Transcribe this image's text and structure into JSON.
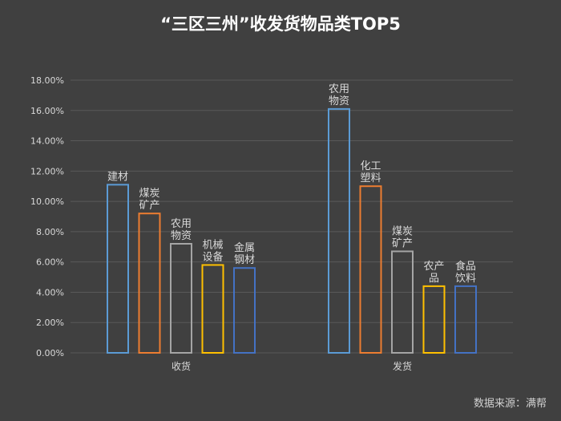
{
  "chart_data": {
    "type": "bar",
    "title": "“三区三州”收发货物品类TOP5",
    "xlabel": "",
    "ylabel": "",
    "ylim": [
      0,
      18
    ],
    "yticks": [
      "0.00%",
      "2.00%",
      "4.00%",
      "6.00%",
      "8.00%",
      "10.00%",
      "12.00%",
      "14.00%",
      "16.00%",
      "18.00%"
    ],
    "grid": true,
    "legend": "none",
    "groups": [
      {
        "label": "收货",
        "items": [
          {
            "name": "建材",
            "value": 11.1,
            "color": "#5b9bd5"
          },
          {
            "name": "煤炭矿产",
            "value": 9.2,
            "color": "#ed7d31"
          },
          {
            "name": "农用物资",
            "value": 7.2,
            "color": "#a5a5a5"
          },
          {
            "name": "机械设备",
            "value": 5.8,
            "color": "#ffc000"
          },
          {
            "name": "金属钢材",
            "value": 5.6,
            "color": "#4472c4"
          }
        ]
      },
      {
        "label": "发货",
        "items": [
          {
            "name": "农用物资",
            "value": 16.1,
            "color": "#5b9bd5"
          },
          {
            "name": "化工塑料",
            "value": 11.0,
            "color": "#ed7d31"
          },
          {
            "name": "煤炭矿产",
            "value": 6.7,
            "color": "#a5a5a5"
          },
          {
            "name": "农产品",
            "value": 4.4,
            "color": "#ffc000"
          },
          {
            "name": "食品饮料",
            "value": 4.4,
            "color": "#4472c4"
          }
        ]
      }
    ]
  },
  "source": "数据来源：满帮",
  "colors": {
    "background": "#404040",
    "grid": "#595959",
    "axis_text": "#d9d9d9"
  }
}
